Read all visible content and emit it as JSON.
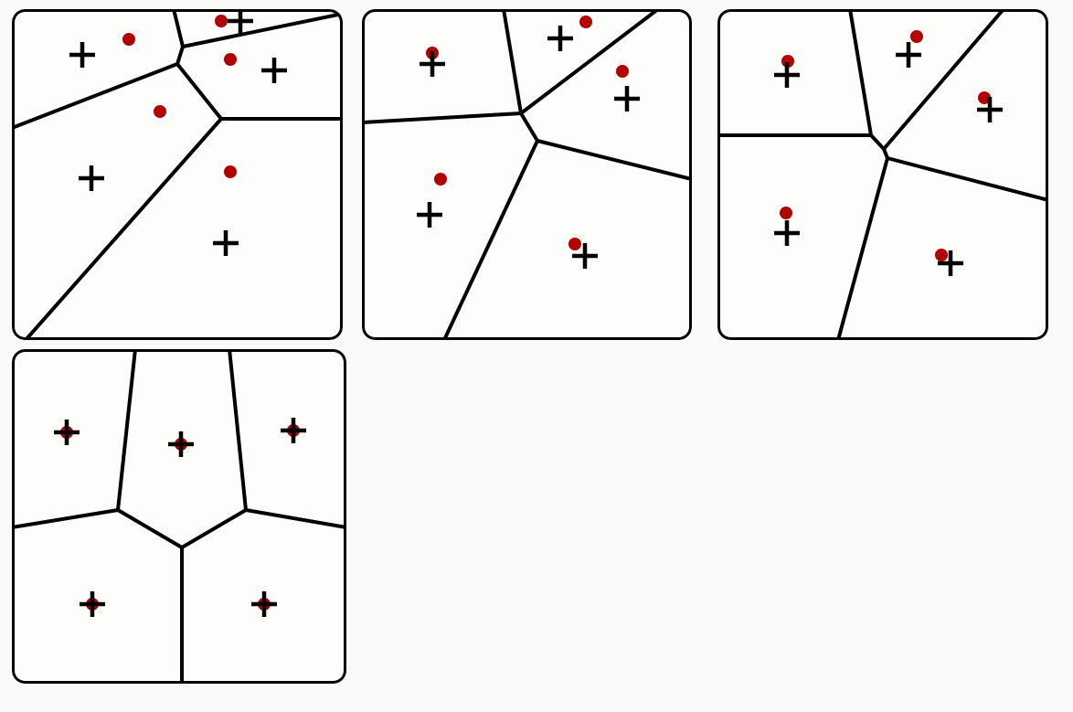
{
  "colors": {
    "background": "#fafaf8",
    "panel": "#fdfdfc",
    "edge": "#000000",
    "generator": "#000000",
    "centroid": "#b30000"
  },
  "panels": [
    {
      "id": "p1",
      "step": 1,
      "generators": [
        [
          77,
          50
        ],
        [
          287,
          67
        ],
        [
          250,
          13
        ],
        [
          87,
          185
        ],
        [
          234,
          256
        ]
      ],
      "centroids": [
        [
          128,
          33
        ],
        [
          229,
          13
        ],
        [
          239,
          55
        ],
        [
          162,
          112
        ],
        [
          239,
          178
        ]
      ],
      "edges": [
        [
          [
            0,
            130
          ],
          [
            181,
            60
          ]
        ],
        [
          [
            181,
            60
          ],
          [
            187,
            41
          ]
        ],
        [
          [
            187,
            41
          ],
          [
            177,
            0
          ]
        ],
        [
          [
            187,
            41
          ],
          [
            362,
            5
          ]
        ],
        [
          [
            181,
            60
          ],
          [
            229,
            120
          ]
        ],
        [
          [
            229,
            120
          ],
          [
            362,
            120
          ]
        ],
        [
          [
            229,
            120
          ],
          [
            15,
            362
          ]
        ]
      ]
    },
    {
      "id": "p2",
      "step": 2,
      "generators": [
        [
          77,
          60
        ],
        [
          217,
          32
        ],
        [
          290,
          98
        ],
        [
          74,
          225
        ],
        [
          244,
          270
        ]
      ],
      "centroids": [
        [
          77,
          48
        ],
        [
          245,
          14
        ],
        [
          285,
          68
        ],
        [
          86,
          186
        ],
        [
          233,
          257
        ]
      ],
      "edges": [
        [
          [
            0,
            124
          ],
          [
            174,
            114
          ]
        ],
        [
          [
            174,
            114
          ],
          [
            155,
            0
          ]
        ],
        [
          [
            174,
            114
          ],
          [
            324,
            0
          ]
        ],
        [
          [
            174,
            114
          ],
          [
            192,
            144
          ]
        ],
        [
          [
            192,
            144
          ],
          [
            361,
            186
          ]
        ],
        [
          [
            192,
            144
          ],
          [
            90,
            362
          ]
        ]
      ]
    },
    {
      "id": "p3",
      "step": 3,
      "generators": [
        [
          76,
          72
        ],
        [
          209,
          50
        ],
        [
          298,
          110
        ],
        [
          76,
          245
        ],
        [
          255,
          278
        ]
      ],
      "centroids": [
        [
          77,
          57
        ],
        [
          218,
          30
        ],
        [
          292,
          97
        ],
        [
          75,
          223
        ],
        [
          245,
          269
        ]
      ],
      "edges": [
        [
          [
            0,
            138
          ],
          [
            168,
            138
          ]
        ],
        [
          [
            168,
            138
          ],
          [
            145,
            0
          ]
        ],
        [
          [
            168,
            138
          ],
          [
            182,
            153
          ]
        ],
        [
          [
            182,
            153
          ],
          [
            313,
            0
          ]
        ],
        [
          [
            182,
            153
          ],
          [
            186,
            163
          ]
        ],
        [
          [
            186,
            163
          ],
          [
            362,
            209
          ]
        ],
        [
          [
            186,
            163
          ],
          [
            132,
            362
          ]
        ]
      ]
    },
    {
      "id": "p4",
      "step": 4,
      "generators": [
        [
          60,
          91
        ],
        [
          185,
          104
        ],
        [
          308,
          89
        ],
        [
          88,
          279
        ],
        [
          276,
          279
        ]
      ],
      "centroids": [
        [
          60,
          91
        ],
        [
          185,
          104
        ],
        [
          308,
          89
        ],
        [
          88,
          279
        ],
        [
          276,
          279
        ]
      ],
      "edges": [
        [
          [
            0,
            195
          ],
          [
            116,
            176
          ]
        ],
        [
          [
            116,
            176
          ],
          [
            135,
            0
          ]
        ],
        [
          [
            116,
            176
          ],
          [
            186,
            217
          ]
        ],
        [
          [
            186,
            217
          ],
          [
            256,
            176
          ]
        ],
        [
          [
            256,
            176
          ],
          [
            238,
            0
          ]
        ],
        [
          [
            256,
            176
          ],
          [
            366,
            195
          ]
        ],
        [
          [
            186,
            217
          ],
          [
            186,
            366
          ]
        ]
      ]
    }
  ]
}
